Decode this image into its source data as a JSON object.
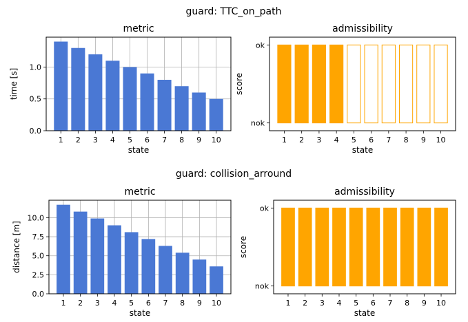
{
  "figure": {
    "colors": {
      "metric_bar": "#4a78d4",
      "admissible_bar": "#ffa500"
    }
  },
  "chart_data": [
    {
      "suptitle": "guard: TTC_on_path",
      "panels": [
        {
          "type": "bar",
          "title": "metric",
          "xlabel": "state",
          "ylabel": "time [s]",
          "categories": [
            "1",
            "2",
            "3",
            "4",
            "5",
            "6",
            "7",
            "8",
            "9",
            "10"
          ],
          "values": [
            1.4,
            1.3,
            1.2,
            1.1,
            1.0,
            0.9,
            0.8,
            0.7,
            0.6,
            0.5
          ],
          "ylim": [
            0,
            1.47
          ],
          "yticks": [
            0.0,
            0.5,
            1.0
          ],
          "ytick_labels": [
            "0.0",
            "0.5",
            "1.0"
          ],
          "grid": true
        },
        {
          "type": "bar",
          "title": "admissibility",
          "xlabel": "state",
          "ylabel": "score",
          "categories": [
            "1",
            "2",
            "3",
            "4",
            "5",
            "6",
            "7",
            "8",
            "9",
            "10"
          ],
          "values": [
            "ok",
            "ok",
            "ok",
            "ok",
            "ok",
            "ok",
            "ok",
            "ok",
            "ok",
            "ok"
          ],
          "filled": [
            true,
            true,
            true,
            true,
            false,
            false,
            false,
            false,
            false,
            false
          ],
          "ylim": [
            -0.1,
            1.1
          ],
          "yticks": [
            0,
            1
          ],
          "ytick_labels": [
            "nok",
            "ok"
          ],
          "grid": false
        }
      ]
    },
    {
      "suptitle": "guard: collision_arround",
      "panels": [
        {
          "type": "bar",
          "title": "metric",
          "xlabel": "state",
          "ylabel": "distance [m]",
          "categories": [
            "1",
            "2",
            "3",
            "4",
            "5",
            "6",
            "7",
            "8",
            "9",
            "10"
          ],
          "values": [
            11.7,
            10.8,
            9.9,
            9.0,
            8.1,
            7.2,
            6.3,
            5.4,
            4.5,
            3.6
          ],
          "ylim": [
            0,
            12.3
          ],
          "yticks": [
            0.0,
            2.5,
            5.0,
            7.5,
            10.0
          ],
          "ytick_labels": [
            "0.0",
            "2.5",
            "5.0",
            "7.5",
            "10.0"
          ],
          "grid": true
        },
        {
          "type": "bar",
          "title": "admissibility",
          "xlabel": "state",
          "ylabel": "score",
          "categories": [
            "1",
            "2",
            "3",
            "4",
            "5",
            "6",
            "7",
            "8",
            "9",
            "10"
          ],
          "values": [
            "ok",
            "ok",
            "ok",
            "ok",
            "ok",
            "ok",
            "ok",
            "ok",
            "ok",
            "ok"
          ],
          "filled": [
            true,
            true,
            true,
            true,
            true,
            true,
            true,
            true,
            true,
            true
          ],
          "ylim": [
            -0.1,
            1.1
          ],
          "yticks": [
            0,
            1
          ],
          "ytick_labels": [
            "nok",
            "ok"
          ],
          "grid": false
        }
      ]
    }
  ]
}
